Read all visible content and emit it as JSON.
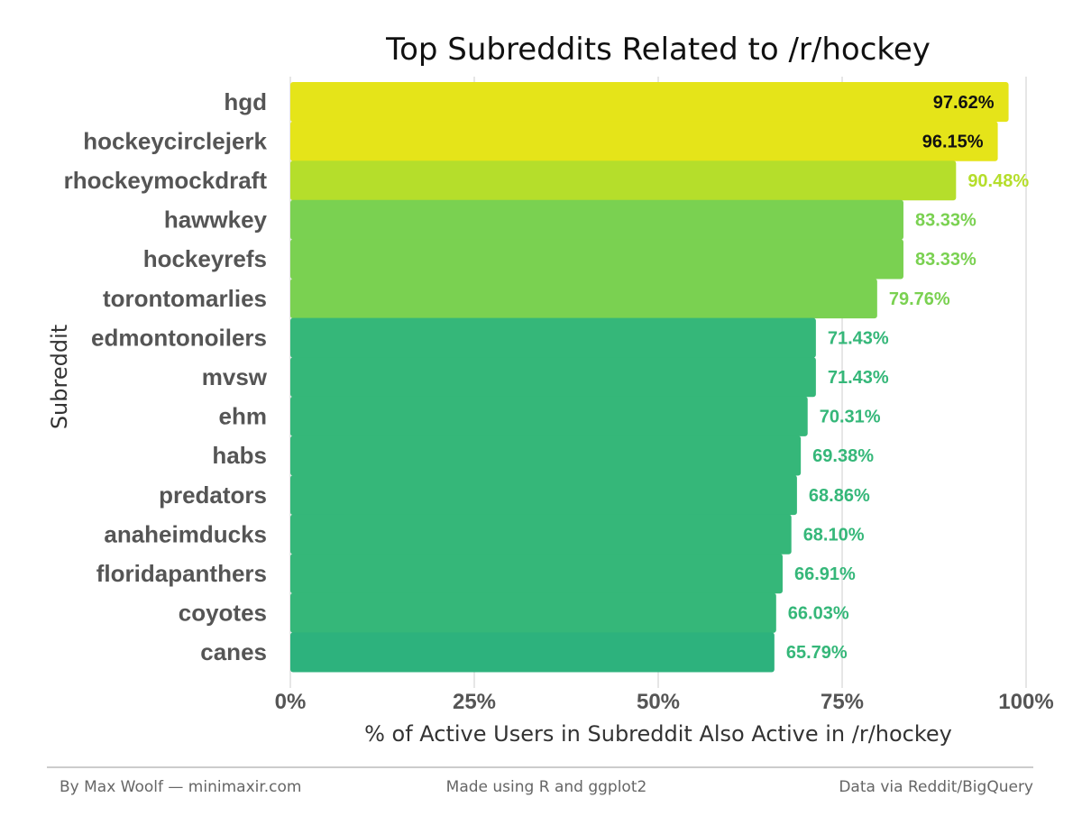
{
  "chart_data": {
    "type": "bar",
    "orientation": "horizontal",
    "title": "Top Subreddits Related to /r/hockey",
    "xlabel": "% of Active Users in Subreddit Also Active in /r/hockey",
    "ylabel": "Subreddit",
    "xlim": [
      0,
      100
    ],
    "xticks": [
      "0%",
      "25%",
      "50%",
      "75%",
      "100%"
    ],
    "grid": "vertical",
    "categories": [
      "hgd",
      "hockeycirclejerk",
      "rhockeymockdraft",
      "hawwkey",
      "hockeyrefs",
      "torontomarlies",
      "edmontonoilers",
      "mvsw",
      "ehm",
      "habs",
      "predators",
      "anaheimducks",
      "floridapanthers",
      "coyotes",
      "canes"
    ],
    "values": [
      97.62,
      96.15,
      90.48,
      83.33,
      83.33,
      79.76,
      71.43,
      71.43,
      70.31,
      69.38,
      68.86,
      68.1,
      66.91,
      66.03,
      65.79
    ],
    "data_labels": [
      "97.62%",
      "96.15%",
      "90.48%",
      "83.33%",
      "83.33%",
      "79.76%",
      "71.43%",
      "71.43%",
      "70.31%",
      "69.38%",
      "68.86%",
      "68.10%",
      "66.91%",
      "66.03%",
      "65.79%"
    ],
    "colors": [
      "#e5e419",
      "#e5e419",
      "#b5de2b",
      "#7ad151",
      "#7ad151",
      "#7ad151",
      "#35b779",
      "#35b779",
      "#35b779",
      "#35b779",
      "#35b779",
      "#35b779",
      "#35b779",
      "#35b779",
      "#2db27d"
    ],
    "label_colors": [
      "#111111",
      "#111111",
      "#b5de2b",
      "#7ad151",
      "#7ad151",
      "#7ad151",
      "#35b779",
      "#35b779",
      "#35b779",
      "#35b779",
      "#35b779",
      "#35b779",
      "#35b779",
      "#35b779",
      "#35b779"
    ],
    "grid_color": "#e0e0e0"
  },
  "footer": {
    "left": "By Max Woolf — minimaxir.com",
    "center": "Made using R and ggplot2",
    "right": "Data via Reddit/BigQuery"
  }
}
